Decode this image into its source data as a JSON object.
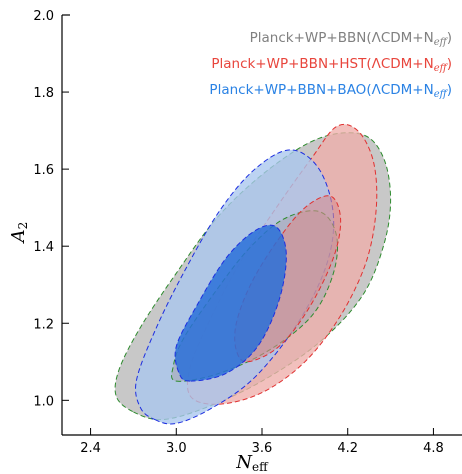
{
  "chart_data": {
    "type": "contour",
    "xlabel": "N",
    "xlabel_sub": "eff",
    "ylabel": "A",
    "ylabel_sub": "2",
    "xlim": [
      2.2,
      5.0
    ],
    "ylim": [
      0.91,
      2.0
    ],
    "xticks": [
      2.4,
      3.0,
      3.6,
      4.2,
      4.8
    ],
    "xtick_labels": [
      "2.4",
      "3.0",
      "3.6",
      "4.2",
      "4.8"
    ],
    "yticks": [
      1.0,
      1.2,
      1.4,
      1.6,
      1.8,
      2.0
    ],
    "ytick_labels": [
      "1.0",
      "1.2",
      "1.4",
      "1.6",
      "1.8",
      "2.0"
    ],
    "legend_position": "top-right",
    "series": [
      {
        "name": "Planck+WP+BBN(ΛCDM+N_eff)",
        "legend_label": "Planck+WP+BBN(ΛCDM+N",
        "legend_sub": "eff",
        "text_color": "#808080",
        "fill_outer": "#c8c8c8",
        "fill_inner": "#a9a9b4",
        "edge_color": "#2e8b2e",
        "contour_95": [
          [
            2.7,
            0.97
          ],
          [
            2.9,
            0.95
          ],
          [
            3.2,
            0.98
          ],
          [
            3.6,
            1.05
          ],
          [
            4.0,
            1.15
          ],
          [
            4.3,
            1.27
          ],
          [
            4.45,
            1.4
          ],
          [
            4.5,
            1.52
          ],
          [
            4.45,
            1.63
          ],
          [
            4.3,
            1.69
          ],
          [
            4.0,
            1.68
          ],
          [
            3.65,
            1.6
          ],
          [
            3.3,
            1.48
          ],
          [
            3.0,
            1.33
          ],
          [
            2.75,
            1.19
          ],
          [
            2.6,
            1.08
          ],
          [
            2.58,
            1.01
          ]
        ],
        "contour_68": [
          [
            3.0,
            1.05
          ],
          [
            3.3,
            1.07
          ],
          [
            3.65,
            1.13
          ],
          [
            3.95,
            1.22
          ],
          [
            4.1,
            1.33
          ],
          [
            4.12,
            1.43
          ],
          [
            4.0,
            1.49
          ],
          [
            3.75,
            1.47
          ],
          [
            3.5,
            1.39
          ],
          [
            3.25,
            1.27
          ],
          [
            3.05,
            1.16
          ],
          [
            2.98,
            1.09
          ]
        ]
      },
      {
        "name": "Planck+WP+BBN+HST(ΛCDM+N_eff)",
        "legend_label": "Planck+WP+BBN+HST(ΛCDM+N",
        "legend_sub": "eff",
        "text_color": "#e8453c",
        "fill_outer": "#eeaeaa",
        "fill_inner": "#d98c8e",
        "edge_color": "#e03030",
        "contour_95": [
          [
            3.3,
            0.99
          ],
          [
            3.6,
            1.02
          ],
          [
            3.9,
            1.1
          ],
          [
            4.15,
            1.22
          ],
          [
            4.33,
            1.36
          ],
          [
            4.4,
            1.5
          ],
          [
            4.38,
            1.62
          ],
          [
            4.27,
            1.7
          ],
          [
            4.12,
            1.71
          ],
          [
            3.95,
            1.63
          ],
          [
            3.7,
            1.5
          ],
          [
            3.45,
            1.36
          ],
          [
            3.25,
            1.22
          ],
          [
            3.1,
            1.09
          ],
          [
            3.1,
            1.01
          ]
        ],
        "contour_68": [
          [
            3.5,
            1.1
          ],
          [
            3.72,
            1.14
          ],
          [
            3.93,
            1.24
          ],
          [
            4.1,
            1.37
          ],
          [
            4.15,
            1.47
          ],
          [
            4.08,
            1.53
          ],
          [
            3.9,
            1.5
          ],
          [
            3.7,
            1.41
          ],
          [
            3.52,
            1.3
          ],
          [
            3.42,
            1.2
          ],
          [
            3.42,
            1.13
          ]
        ]
      },
      {
        "name": "Planck+WP+BBN+BAO(ΛCDM+N_eff)",
        "legend_label": "Planck+WP+BBN+BAO(ΛCDM+N",
        "legend_sub": "eff",
        "text_color": "#2a82e4",
        "fill_outer": "#a9c6ee",
        "fill_inner": "#2a70d8",
        "edge_color": "#1d2ee0",
        "contour_95": [
          [
            2.85,
            0.95
          ],
          [
            3.0,
            0.94
          ],
          [
            3.25,
            0.98
          ],
          [
            3.55,
            1.06
          ],
          [
            3.85,
            1.2
          ],
          [
            4.05,
            1.35
          ],
          [
            4.1,
            1.48
          ],
          [
            4.0,
            1.6
          ],
          [
            3.8,
            1.65
          ],
          [
            3.55,
            1.6
          ],
          [
            3.3,
            1.49
          ],
          [
            3.05,
            1.33
          ],
          [
            2.85,
            1.18
          ],
          [
            2.72,
            1.05
          ],
          [
            2.75,
            0.98
          ]
        ],
        "contour_68": [
          [
            3.1,
            1.05
          ],
          [
            3.35,
            1.07
          ],
          [
            3.57,
            1.14
          ],
          [
            3.72,
            1.26
          ],
          [
            3.77,
            1.38
          ],
          [
            3.7,
            1.45
          ],
          [
            3.55,
            1.44
          ],
          [
            3.35,
            1.37
          ],
          [
            3.15,
            1.25
          ],
          [
            3.0,
            1.14
          ],
          [
            3.02,
            1.07
          ]
        ]
      }
    ]
  }
}
